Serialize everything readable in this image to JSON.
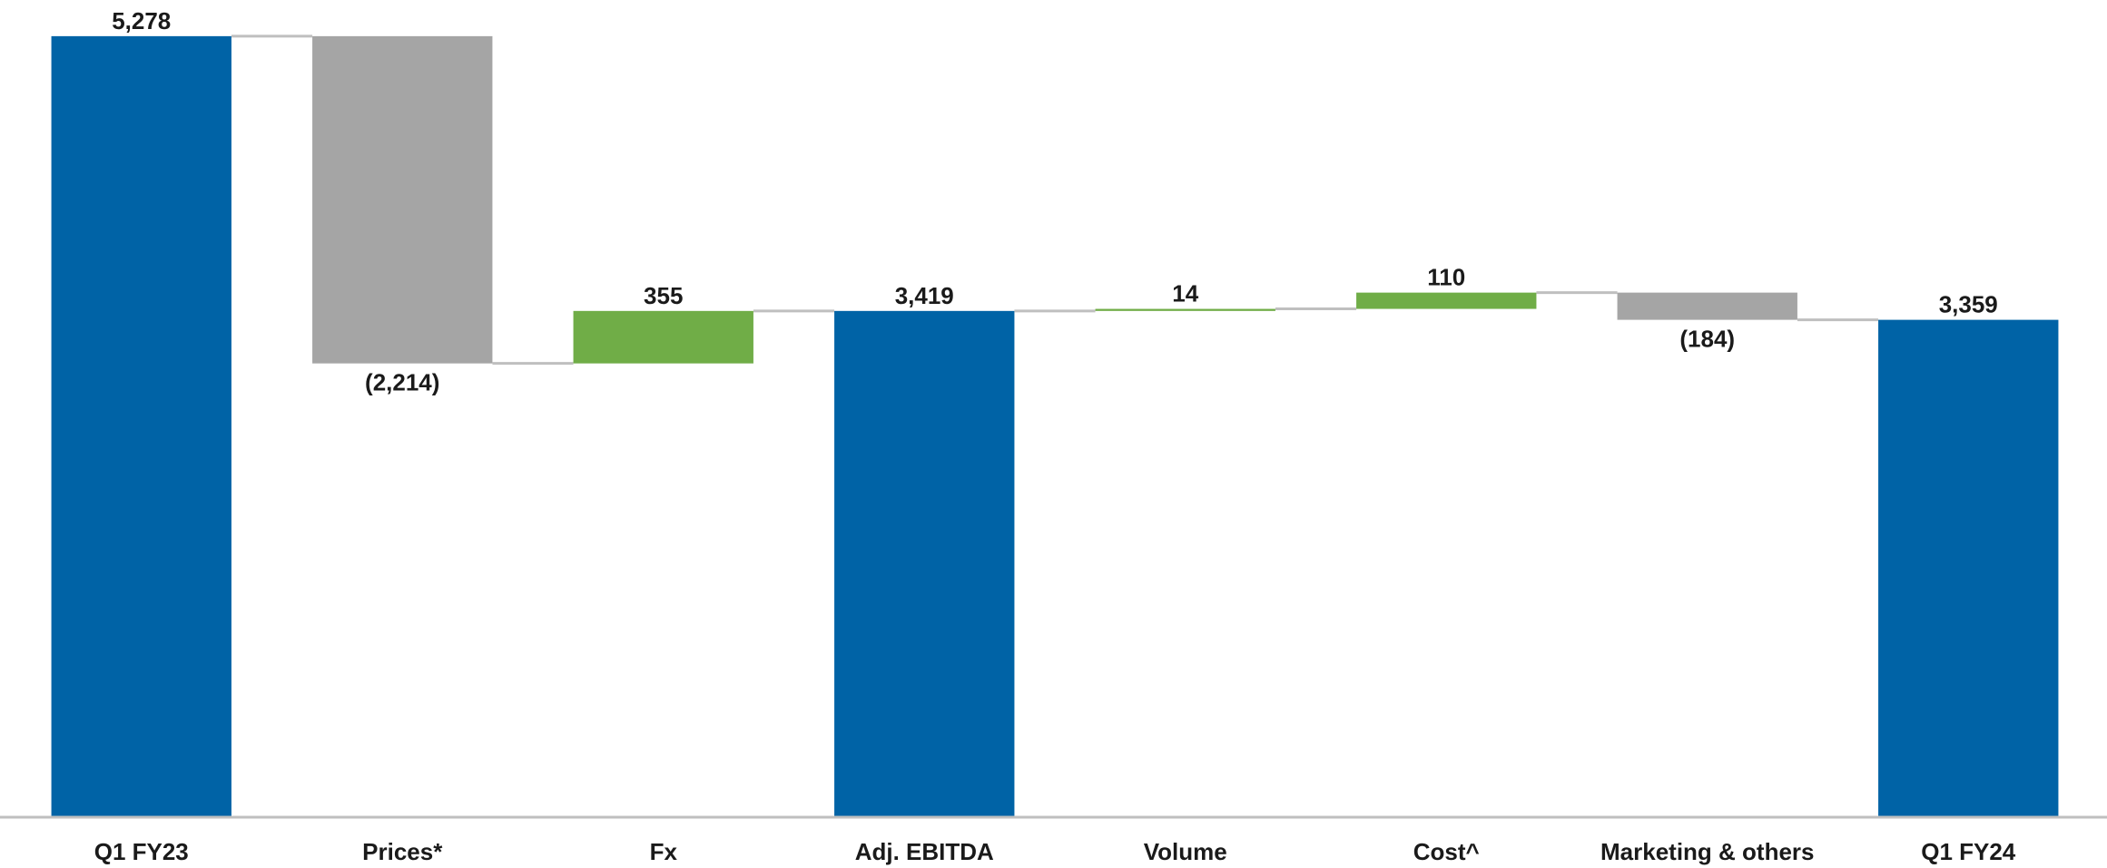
{
  "chart_data": {
    "type": "waterfall",
    "categories": [
      "Q1 FY23",
      "Prices*",
      "Fx",
      "Adj. EBITDA",
      "Volume",
      "Cost^",
      "Marketing & others",
      "Q1 FY24"
    ],
    "values": [
      5278,
      -2214,
      355,
      3419,
      14,
      110,
      -184,
      3359
    ],
    "value_labels": [
      "5,278",
      "(2,214)",
      "355",
      "3,419",
      "14",
      "110",
      "(184)",
      "3,359"
    ],
    "measures": [
      "total",
      "relative",
      "relative",
      "total",
      "relative",
      "relative",
      "relative",
      "total"
    ],
    "colors": {
      "total": "#0063a6",
      "increase": "#70ad47",
      "decrease": "#a5a5a5"
    },
    "ylim": [
      0,
      5400
    ]
  }
}
